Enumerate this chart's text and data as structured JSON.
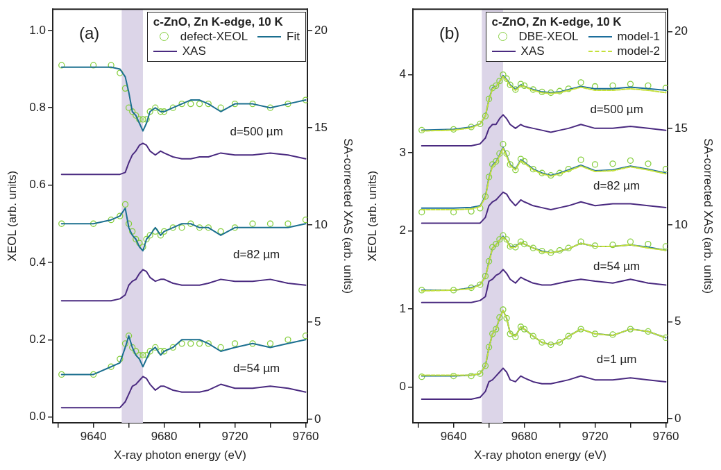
{
  "chart_data": [
    {
      "type": "line",
      "title": "(a)",
      "xlabel": "X-ray photon energy (eV)",
      "ylabel": "XEOL (arb. units)",
      "y2label": "SA-corrected XAS (arb. units)",
      "legend_title": "c-ZnO, Zn K-edge, 10 K",
      "legend": "top right",
      "grid": false,
      "xlim": [
        9617,
        9761
      ],
      "xticks": [
        {
          "value": 9620,
          "label": null
        },
        9640,
        {
          "value": 9660,
          "label": null
        },
        9680,
        {
          "value": 9700,
          "label": null
        },
        9720,
        {
          "value": 9740,
          "label": null
        },
        9760
      ],
      "ylim": [
        -0.015,
        1.055
      ],
      "yticks": [
        {
          "value": 0,
          "label": "0.0"
        },
        0.2,
        0.4,
        0.6,
        0.8,
        {
          "value": 1,
          "label": "1.0"
        }
      ],
      "y2lim": [
        -0.18,
        21.1
      ],
      "y2ticks": [
        0,
        5,
        10,
        15,
        20
      ],
      "bands": [
        {
          "axis": "x",
          "from": 9656,
          "to": 9668,
          "color": "#dcd5e8"
        }
      ],
      "annotations": [
        "d=500 µm",
        "d=82 µm",
        "d=54 µm"
      ],
      "x": [
        9622,
        9640,
        9650,
        9655,
        9658,
        9660,
        9662,
        9664,
        9666,
        9668,
        9670,
        9672,
        9675,
        9678,
        9680,
        9685,
        9690,
        9695,
        9700,
        9705,
        9712,
        9720,
        9730,
        9740,
        9750,
        9760
      ],
      "series": [
        {
          "name": "defect-XEOL",
          "type": "scatter",
          "marker": "circle",
          "color": "#86cf3e",
          "values": [
            0.91,
            0.91,
            0.91,
            0.89,
            0.85,
            0.8,
            0.79,
            0.78,
            0.77,
            0.77,
            0.77,
            0.79,
            0.8,
            0.79,
            0.79,
            0.8,
            0.81,
            0.81,
            0.81,
            0.81,
            0.8,
            0.81,
            0.81,
            0.8,
            0.81,
            0.82
          ]
        },
        {
          "name": "Fit",
          "type": "line",
          "color": "#1b6f8f",
          "values": [
            0.905,
            0.905,
            0.905,
            0.9,
            0.88,
            0.84,
            0.79,
            0.78,
            0.76,
            0.74,
            0.76,
            0.79,
            0.8,
            0.79,
            0.79,
            0.8,
            0.81,
            0.82,
            0.82,
            0.81,
            0.79,
            0.81,
            0.81,
            0.8,
            0.81,
            0.82
          ]
        },
        {
          "name": "XAS",
          "type": "line",
          "axis": "y2",
          "color": "#4a2a80",
          "values": [
            12.6,
            12.6,
            12.6,
            12.6,
            12.7,
            13.2,
            13.6,
            13.8,
            14.1,
            14.2,
            14.1,
            13.8,
            13.6,
            13.8,
            13.7,
            13.5,
            13.4,
            13.4,
            13.5,
            13.5,
            13.7,
            13.6,
            13.6,
            13.7,
            13.6,
            13.4
          ]
        },
        {
          "type": "scatter",
          "marker": "circle",
          "color": "#86cf3e",
          "values": [
            0.5,
            0.5,
            0.51,
            0.52,
            0.55,
            0.5,
            0.48,
            0.46,
            0.45,
            0.44,
            0.46,
            0.47,
            0.48,
            0.47,
            0.48,
            0.49,
            0.49,
            0.5,
            0.49,
            0.49,
            0.48,
            0.49,
            0.5,
            0.5,
            0.5,
            0.51
          ]
        },
        {
          "type": "line",
          "color": "#1b6f8f",
          "values": [
            0.5,
            0.5,
            0.51,
            0.52,
            0.54,
            0.49,
            0.47,
            0.46,
            0.44,
            0.43,
            0.46,
            0.47,
            0.49,
            0.47,
            0.48,
            0.49,
            0.5,
            0.5,
            0.49,
            0.49,
            0.47,
            0.49,
            0.49,
            0.49,
            0.49,
            0.5
          ]
        },
        {
          "type": "line",
          "axis": "y2",
          "color": "#4a2a80",
          "values": [
            6.1,
            6.1,
            6.1,
            6.2,
            6.4,
            6.9,
            7.1,
            7.2,
            7.5,
            7.7,
            7.6,
            7.3,
            7.1,
            7.2,
            7.2,
            7.0,
            6.9,
            6.9,
            6.9,
            7.0,
            7.2,
            7.1,
            7.1,
            7.2,
            7.0,
            6.9
          ]
        },
        {
          "type": "scatter",
          "marker": "circle",
          "color": "#86cf3e",
          "values": [
            0.11,
            0.11,
            0.13,
            0.15,
            0.19,
            0.21,
            0.18,
            0.17,
            0.16,
            0.16,
            0.16,
            0.17,
            0.18,
            0.17,
            0.17,
            0.18,
            0.19,
            0.19,
            0.19,
            0.19,
            0.18,
            0.19,
            0.19,
            0.19,
            0.2,
            0.21
          ]
        },
        {
          "type": "line",
          "color": "#1b6f8f",
          "values": [
            0.11,
            0.11,
            0.13,
            0.14,
            0.18,
            0.21,
            0.18,
            0.16,
            0.15,
            0.13,
            0.15,
            0.17,
            0.18,
            0.16,
            0.17,
            0.18,
            0.2,
            0.2,
            0.2,
            0.19,
            0.17,
            0.18,
            0.19,
            0.18,
            0.19,
            0.2
          ]
        },
        {
          "type": "line",
          "axis": "y2",
          "color": "#4a2a80",
          "values": [
            0.6,
            0.6,
            0.6,
            0.6,
            0.9,
            1.3,
            1.7,
            1.8,
            2.0,
            2.2,
            2.1,
            1.8,
            1.5,
            1.7,
            1.7,
            1.5,
            1.4,
            1.4,
            1.4,
            1.5,
            1.8,
            1.6,
            1.6,
            1.7,
            1.6,
            1.4
          ]
        }
      ]
    },
    {
      "type": "line",
      "title": "(b)",
      "xlabel": "X-ray photon energy (eV)",
      "ylabel": "XEOL (arb. units)",
      "y2label": "SA-corrected XAS (arb. units)",
      "legend_title": "c-ZnO, Zn K-edge, 10 K",
      "legend": "top right",
      "grid": false,
      "xlim": [
        9617,
        9761
      ],
      "xticks": [
        {
          "value": 9620,
          "label": null
        },
        9640,
        {
          "value": 9660,
          "label": null
        },
        9680,
        {
          "value": 9700,
          "label": null
        },
        9720,
        {
          "value": 9740,
          "label": null
        },
        9760
      ],
      "ylim": [
        -0.46,
        4.84
      ],
      "yticks": [
        0,
        1,
        2,
        3,
        4
      ],
      "y2lim": [
        -0.22,
        21.16
      ],
      "y2ticks": [
        0,
        5,
        10,
        15,
        20
      ],
      "bands": [
        {
          "axis": "x",
          "from": 9656,
          "to": 9668,
          "color": "#dcd5e8"
        }
      ],
      "annotations": [
        "d=500 µm",
        "d=82 µm",
        "d=54 µm",
        "d=1 µm"
      ],
      "x": [
        9622,
        9640,
        9650,
        9655,
        9658,
        9660,
        9662,
        9664,
        9666,
        9668,
        9670,
        9672,
        9675,
        9678,
        9680,
        9685,
        9690,
        9695,
        9700,
        9705,
        9712,
        9720,
        9730,
        9740,
        9750,
        9760
      ],
      "series": [
        {
          "name": "DBE-XEOL",
          "type": "scatter",
          "marker": "circle",
          "color": "#86cf3e",
          "values": [
            3.29,
            3.3,
            3.33,
            3.37,
            3.47,
            3.69,
            3.83,
            3.86,
            3.92,
            4.0,
            3.95,
            3.87,
            3.81,
            3.88,
            3.86,
            3.81,
            3.78,
            3.77,
            3.79,
            3.82,
            3.9,
            3.85,
            3.86,
            3.88,
            3.86,
            3.83
          ]
        },
        {
          "name": "model-1",
          "type": "line",
          "color": "#1c6e9c",
          "values": [
            3.29,
            3.3,
            3.33,
            3.37,
            3.47,
            3.68,
            3.83,
            3.85,
            3.91,
            3.99,
            3.94,
            3.87,
            3.81,
            3.87,
            3.85,
            3.81,
            3.78,
            3.77,
            3.78,
            3.81,
            3.85,
            3.82,
            3.82,
            3.84,
            3.82,
            3.8
          ]
        },
        {
          "name": "XAS",
          "type": "line",
          "axis": "y2",
          "color": "#4a2a80",
          "values": [
            14.1,
            14.1,
            14.1,
            14.2,
            14.5,
            15.0,
            15.2,
            15.2,
            15.5,
            15.7,
            15.5,
            15.2,
            15.0,
            15.2,
            15.1,
            15.0,
            14.9,
            14.8,
            14.9,
            15.0,
            15.2,
            15.0,
            15.0,
            15.1,
            15.0,
            14.9
          ]
        },
        {
          "name": "model-2",
          "type": "line",
          "line_style": "dashed",
          "color": "#c4e03a",
          "values": [
            3.28,
            3.29,
            3.32,
            3.37,
            3.47,
            3.68,
            3.82,
            3.85,
            3.91,
            3.98,
            3.93,
            3.86,
            3.8,
            3.86,
            3.85,
            3.8,
            3.77,
            3.76,
            3.77,
            3.8,
            3.84,
            3.8,
            3.8,
            3.82,
            3.8,
            3.77
          ]
        },
        {
          "type": "scatter",
          "marker": "circle",
          "color": "#86cf3e",
          "values": [
            2.24,
            2.24,
            2.25,
            2.29,
            2.44,
            2.69,
            2.85,
            2.89,
            2.99,
            3.11,
            2.99,
            2.85,
            2.78,
            2.92,
            2.89,
            2.79,
            2.74,
            2.71,
            2.74,
            2.79,
            2.91,
            2.85,
            2.86,
            2.9,
            2.86,
            2.79
          ]
        },
        {
          "type": "line",
          "color": "#1c6e9c",
          "values": [
            2.29,
            2.29,
            2.3,
            2.32,
            2.44,
            2.68,
            2.84,
            2.88,
            2.97,
            3.07,
            2.97,
            2.85,
            2.79,
            2.91,
            2.88,
            2.79,
            2.74,
            2.71,
            2.74,
            2.78,
            2.84,
            2.77,
            2.78,
            2.83,
            2.79,
            2.74
          ]
        },
        {
          "type": "line",
          "axis": "y2",
          "color": "#4a2a80",
          "values": [
            10.1,
            10.1,
            10.1,
            10.1,
            10.4,
            11.0,
            11.2,
            11.3,
            11.5,
            11.7,
            11.6,
            11.3,
            11.0,
            11.3,
            11.2,
            11.0,
            10.9,
            10.8,
            10.9,
            11.0,
            11.2,
            11.0,
            11.1,
            11.1,
            11.0,
            10.9
          ]
        },
        {
          "type": "line",
          "line_style": "dashed",
          "color": "#c4e03a",
          "values": [
            2.27,
            2.27,
            2.28,
            2.31,
            2.43,
            2.67,
            2.83,
            2.87,
            2.96,
            3.06,
            2.96,
            2.84,
            2.78,
            2.9,
            2.87,
            2.78,
            2.73,
            2.7,
            2.73,
            2.77,
            2.83,
            2.76,
            2.77,
            2.82,
            2.78,
            2.73
          ]
        },
        {
          "type": "scatter",
          "marker": "circle",
          "color": "#86cf3e",
          "values": [
            1.24,
            1.24,
            1.27,
            1.31,
            1.42,
            1.61,
            1.79,
            1.83,
            1.89,
            1.94,
            1.89,
            1.8,
            1.79,
            1.86,
            1.83,
            1.78,
            1.74,
            1.72,
            1.75,
            1.78,
            1.86,
            1.81,
            1.82,
            1.86,
            1.83,
            1.8
          ]
        },
        {
          "type": "line",
          "color": "#1c6e9c",
          "values": [
            1.24,
            1.24,
            1.27,
            1.31,
            1.41,
            1.6,
            1.78,
            1.82,
            1.88,
            1.93,
            1.88,
            1.8,
            1.8,
            1.85,
            1.83,
            1.78,
            1.74,
            1.72,
            1.74,
            1.77,
            1.84,
            1.8,
            1.8,
            1.82,
            1.79,
            1.75
          ]
        },
        {
          "type": "line",
          "axis": "y2",
          "color": "#4a2a80",
          "values": [
            6.0,
            6.0,
            6.0,
            6.1,
            6.3,
            7.1,
            7.2,
            7.4,
            7.5,
            7.7,
            7.5,
            7.2,
            7.0,
            7.3,
            7.2,
            7.0,
            6.9,
            6.9,
            7.0,
            7.1,
            7.2,
            7.1,
            7.0,
            7.2,
            7.0,
            6.9
          ]
        },
        {
          "type": "line",
          "line_style": "dashed",
          "color": "#c4e03a",
          "values": [
            1.23,
            1.24,
            1.26,
            1.31,
            1.41,
            1.59,
            1.78,
            1.82,
            1.88,
            1.92,
            1.88,
            1.79,
            1.79,
            1.85,
            1.83,
            1.78,
            1.73,
            1.72,
            1.74,
            1.77,
            1.84,
            1.8,
            1.8,
            1.82,
            1.78,
            1.75
          ]
        },
        {
          "type": "scatter",
          "marker": "circle",
          "color": "#86cf3e",
          "values": [
            0.13,
            0.14,
            0.14,
            0.17,
            0.27,
            0.51,
            0.68,
            0.74,
            0.89,
            0.99,
            0.88,
            0.68,
            0.64,
            0.77,
            0.74,
            0.65,
            0.57,
            0.54,
            0.57,
            0.65,
            0.74,
            0.68,
            0.67,
            0.74,
            0.71,
            0.63
          ]
        },
        {
          "type": "line",
          "color": "#1c6e9c",
          "values": [
            0.14,
            0.14,
            0.15,
            0.17,
            0.27,
            0.5,
            0.68,
            0.74,
            0.88,
            0.98,
            0.88,
            0.69,
            0.65,
            0.77,
            0.74,
            0.65,
            0.57,
            0.54,
            0.57,
            0.65,
            0.74,
            0.68,
            0.66,
            0.74,
            0.71,
            0.63
          ]
        },
        {
          "type": "line",
          "axis": "y2",
          "color": "#4a2a80",
          "values": [
            1.0,
            1.0,
            1.0,
            1.1,
            1.4,
            1.9,
            2.0,
            2.2,
            2.4,
            2.6,
            2.4,
            2.0,
            1.9,
            2.2,
            2.1,
            1.9,
            1.8,
            1.8,
            1.9,
            2.0,
            2.2,
            2.0,
            2.0,
            2.1,
            2.0,
            1.9
          ]
        },
        {
          "type": "line",
          "line_style": "dashed",
          "color": "#c4e03a",
          "values": [
            0.15,
            0.15,
            0.15,
            0.17,
            0.27,
            0.5,
            0.68,
            0.74,
            0.88,
            0.98,
            0.88,
            0.69,
            0.65,
            0.77,
            0.74,
            0.65,
            0.57,
            0.54,
            0.57,
            0.65,
            0.74,
            0.68,
            0.66,
            0.74,
            0.71,
            0.63
          ]
        }
      ]
    }
  ]
}
